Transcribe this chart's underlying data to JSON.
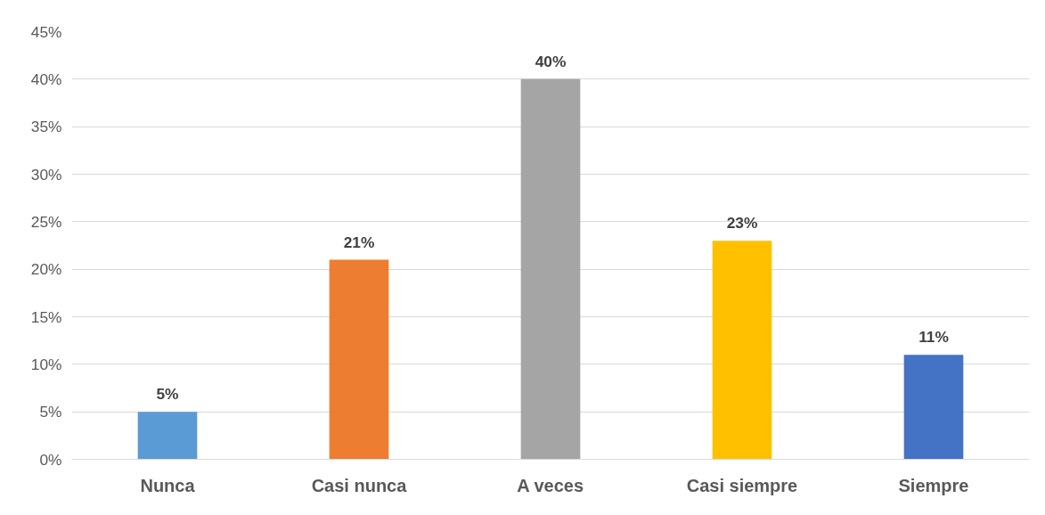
{
  "chart_data": {
    "type": "bar",
    "categories": [
      "Nunca",
      "Casi nunca",
      "A veces",
      "Casi siempre",
      "Siempre"
    ],
    "values": [
      5,
      21,
      40,
      23,
      11
    ],
    "colors": [
      "#5b9bd5",
      "#ed7d31",
      "#a5a5a5",
      "#ffc000",
      "#4472c4"
    ],
    "value_labels": [
      "5%",
      "21%",
      "40%",
      "23%",
      "11%"
    ],
    "ylim": [
      0,
      45
    ],
    "yticks": [
      {
        "value": 0,
        "label": "0%"
      },
      {
        "value": 5,
        "label": "5%"
      },
      {
        "value": 10,
        "label": "10%"
      },
      {
        "value": 15,
        "label": "15%"
      },
      {
        "value": 20,
        "label": "20%"
      },
      {
        "value": 25,
        "label": "25%"
      },
      {
        "value": 30,
        "label": "30%"
      },
      {
        "value": 35,
        "label": "35%"
      },
      {
        "value": 40,
        "label": "40%"
      },
      {
        "value": 45,
        "label": "45%"
      }
    ],
    "grid": "y"
  }
}
